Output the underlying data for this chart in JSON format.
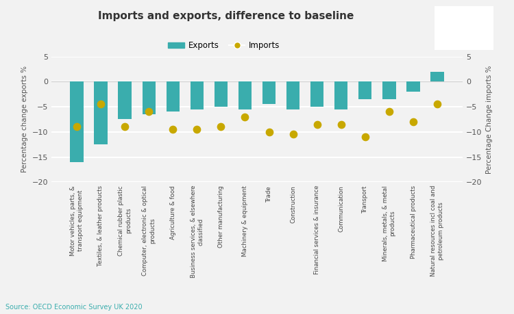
{
  "title": "Imports and exports, difference to baseline",
  "categories": [
    "Motor vehicles, parts, &\ntransport equipment",
    "Textiles, & leather products",
    "Chemical rubber plastic\nproducts",
    "Computer, electronic & optical\nproducts",
    "Agriculture & food",
    "Business services, & elsewhere\nclassified",
    "Other manufacturing",
    "Machinery & equipment",
    "Trade",
    "Construction",
    "Financial services & insurance",
    "Communication",
    "Transport",
    "Minerals, metals, & metal\nproducts",
    "Pharmaceutical products",
    "Natural resources incl coal and\npetroleum products"
  ],
  "exports": [
    -16.0,
    -12.5,
    -7.5,
    -6.5,
    -6.0,
    -5.5,
    -5.0,
    -5.5,
    -4.5,
    -5.5,
    -5.0,
    -5.5,
    -3.5,
    -3.5,
    -2.0,
    2.0
  ],
  "imports": [
    -9.0,
    -4.5,
    -9.0,
    -6.0,
    -9.5,
    -9.5,
    -9.0,
    -7.0,
    -10.0,
    -10.5,
    -8.5,
    -8.5,
    -11.0,
    -6.0,
    -8.0,
    -4.5
  ],
  "bar_color": "#3aadad",
  "dot_color": "#c8a800",
  "background_color": "#f2f2f2",
  "ylabel_left": "Percentage change exports %",
  "ylabel_right": "Percentage Change imports %",
  "ylim": [
    -20,
    5
  ],
  "yticks": [
    -20,
    -15,
    -10,
    -5,
    0,
    5
  ],
  "source": "Source: OECD Economic Survey UK 2020",
  "tuc_T_color": "#e8312a",
  "tuc_U_color": "#3aadad",
  "tuc_C_color": "#f5cb00"
}
